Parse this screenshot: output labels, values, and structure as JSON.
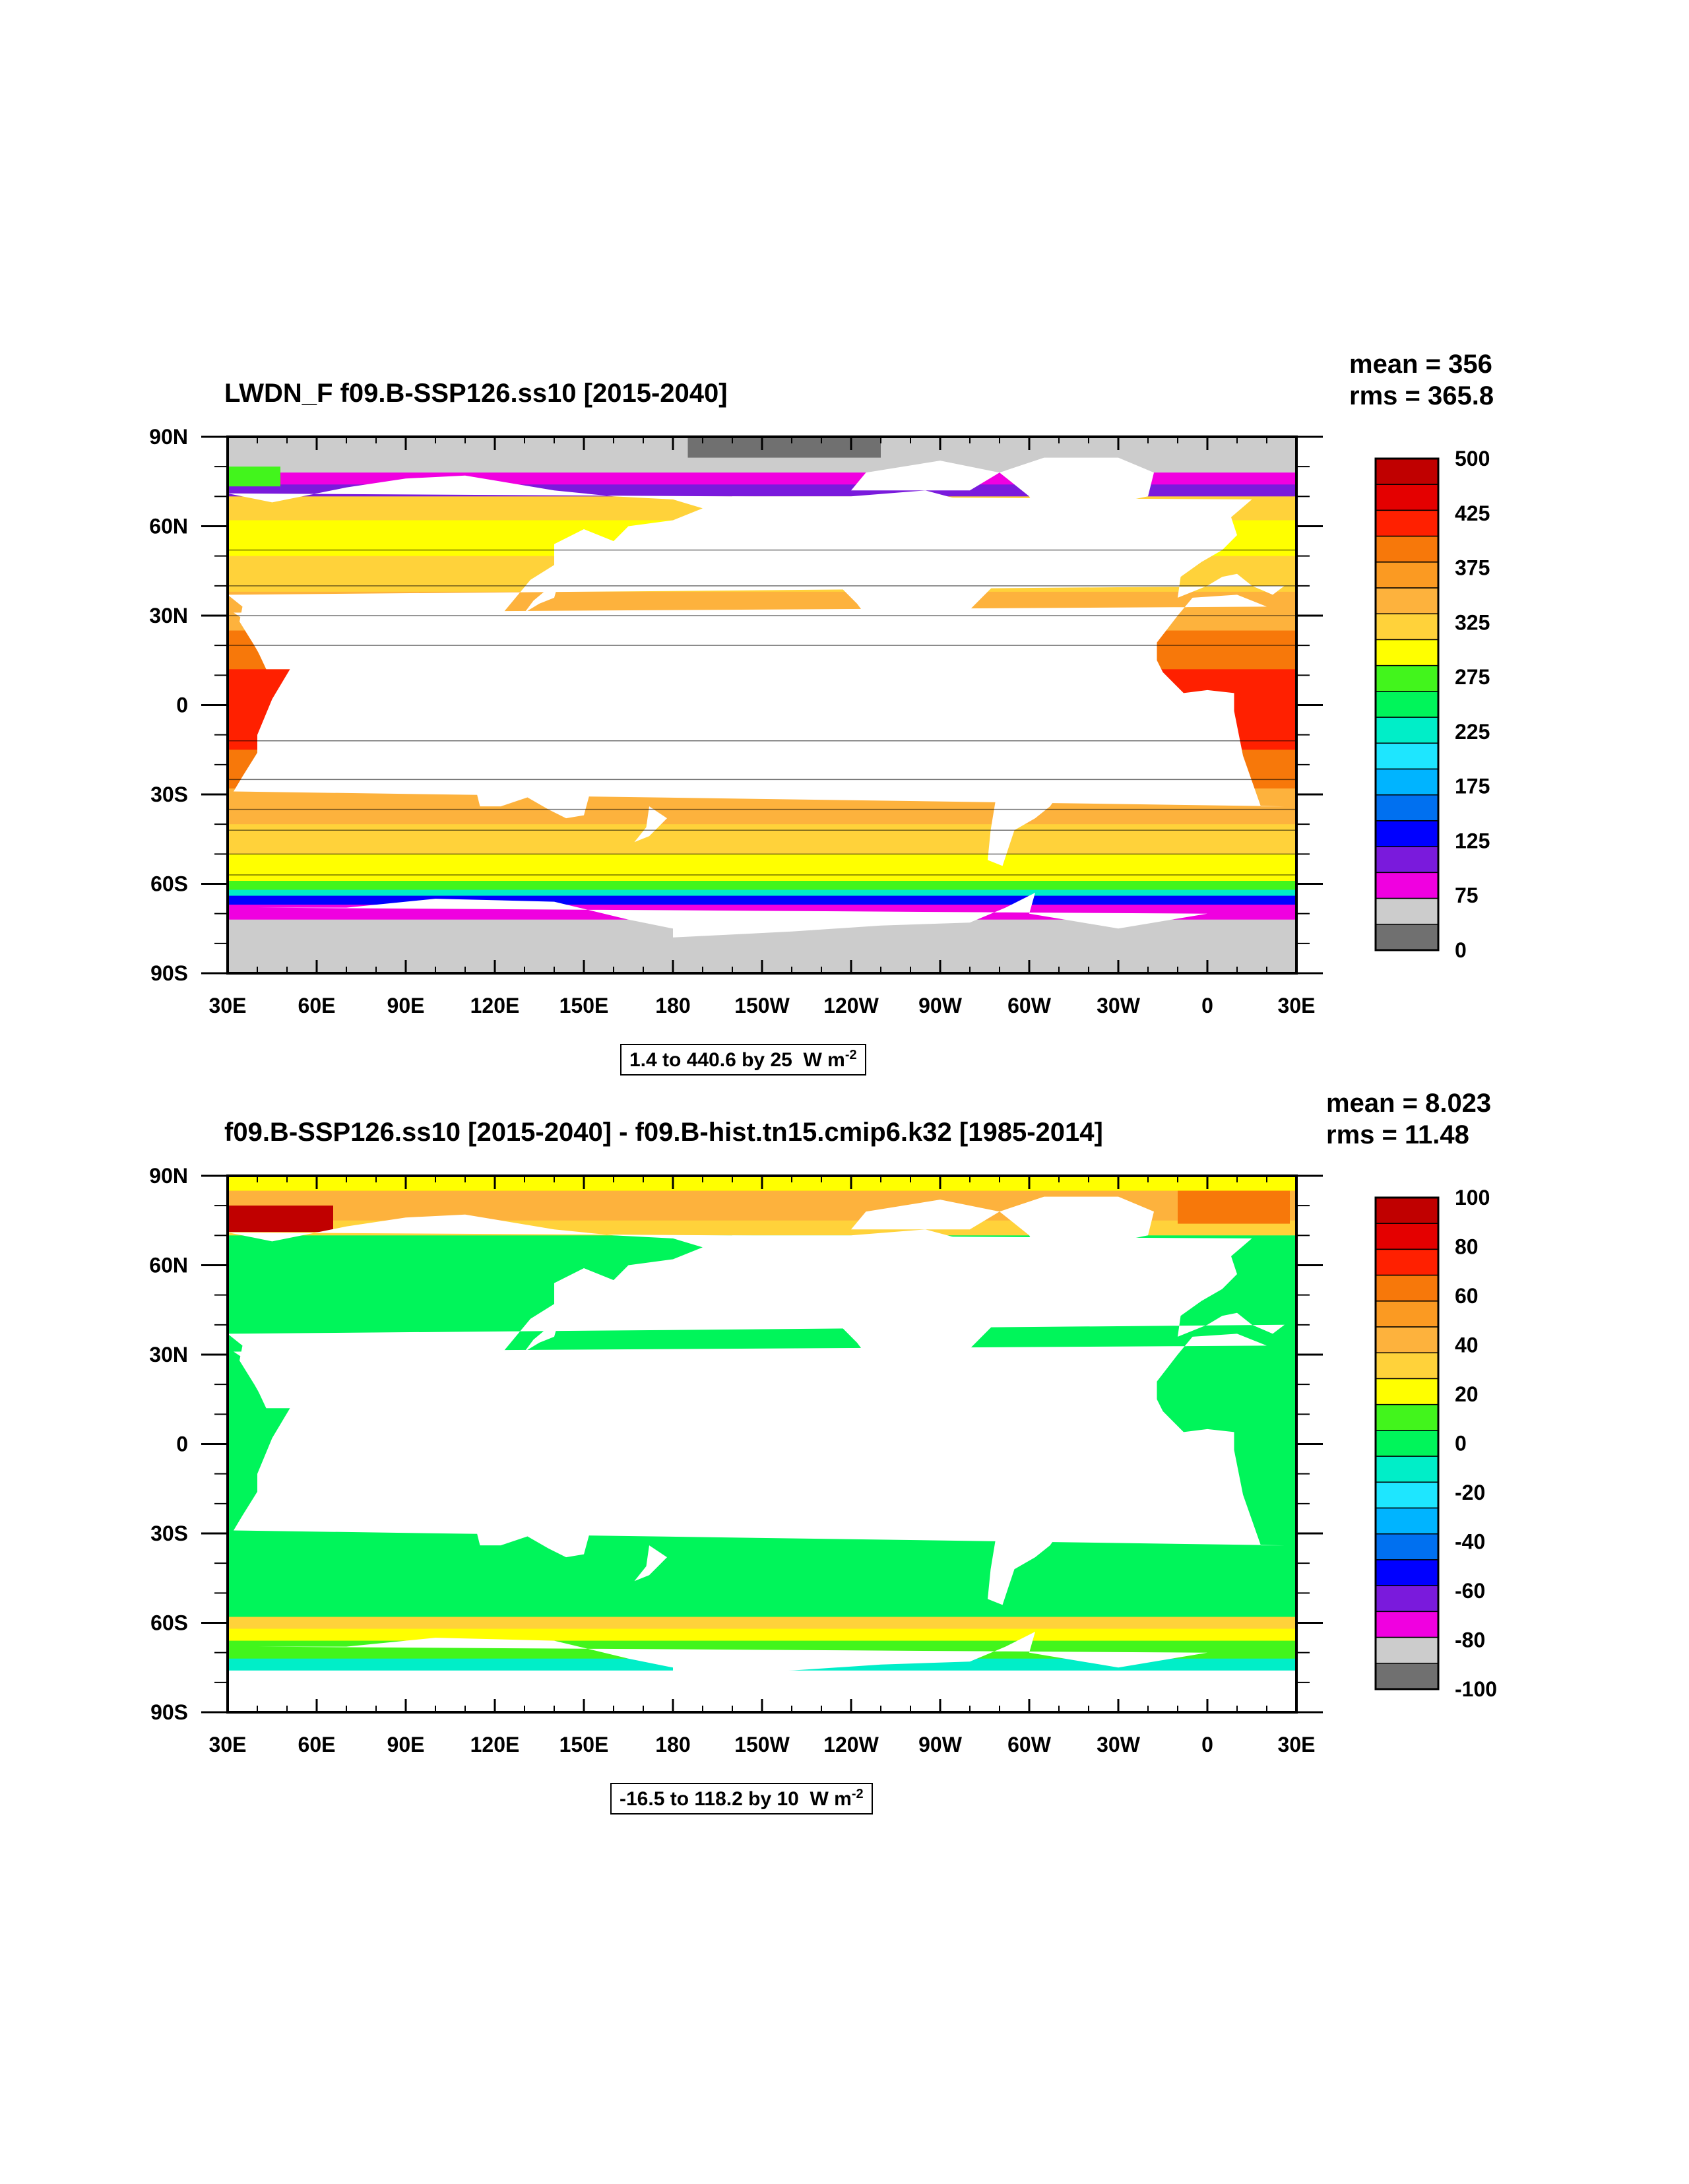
{
  "panels": [
    {
      "title": "LWDN_F f09.B-SSP126.ss10 [2015-2040]",
      "mean": "mean = 356",
      "rms": "rms = 365.8",
      "info": {
        "range": "1.4 to 440.6 by 25",
        "unit": "W m",
        "exp": "-2"
      }
    },
    {
      "title": "f09.B-SSP126.ss10 [2015-2040] - f09.B-hist.tn15.cmip6.k32 [1985-2014]",
      "mean": "mean = 8.023",
      "rms": "rms = 11.48",
      "info": {
        "range": "-16.5 to 118.2 by 10",
        "unit": "W m",
        "exp": "-2"
      }
    }
  ],
  "chart_data": [
    {
      "type": "heatmap",
      "title": "LWDN_F f09.B-SSP126.ss10 [2015-2040]",
      "xticks": [
        "30E",
        "60E",
        "90E",
        "120E",
        "150E",
        "180",
        "150W",
        "120W",
        "90W",
        "60W",
        "30W",
        "0",
        "30E"
      ],
      "yticks": [
        "90N",
        "60N",
        "30N",
        "0",
        "30S",
        "60S",
        "90S"
      ],
      "xlim": [
        30,
        390
      ],
      "ylim": [
        -90,
        90
      ],
      "colorbar": {
        "labels": [
          "500",
          "425",
          "375",
          "325",
          "275",
          "225",
          "175",
          "125",
          "75",
          "0"
        ],
        "colors": [
          "#C00000",
          "#E40000",
          "#FF2000",
          "#F7780A",
          "#FB9A22",
          "#FDB23D",
          "#FFD23A",
          "#FFFF00",
          "#42F51C",
          "#00F55A",
          "#00EEC8",
          "#1EE6FF",
          "#00B4FF",
          "#0070F0",
          "#0000FF",
          "#7A1ADC",
          "#F000E0",
          "#CCCCCC",
          "#707070"
        ]
      },
      "stats": {
        "mean": 356,
        "rms": 365.8
      }
    },
    {
      "type": "heatmap",
      "title": "f09.B-SSP126.ss10 [2015-2040] - f09.B-hist.tn15.cmip6.k32 [1985-2014]",
      "xticks": [
        "30E",
        "60E",
        "90E",
        "120E",
        "150E",
        "180",
        "150W",
        "120W",
        "90W",
        "60W",
        "30W",
        "0",
        "30E"
      ],
      "yticks": [
        "90N",
        "60N",
        "30N",
        "0",
        "30S",
        "60S",
        "90S"
      ],
      "xlim": [
        30,
        390
      ],
      "ylim": [
        -90,
        90
      ],
      "colorbar": {
        "labels": [
          "100",
          "80",
          "60",
          "40",
          "20",
          "0",
          "-20",
          "-40",
          "-60",
          "-80",
          "-100"
        ],
        "colors": [
          "#C00000",
          "#E40000",
          "#FF2000",
          "#F7780A",
          "#FB9A22",
          "#FDB23D",
          "#FFD23A",
          "#FFFF00",
          "#42F51C",
          "#00F55A",
          "#00EEC8",
          "#1EE6FF",
          "#00B4FF",
          "#0070F0",
          "#0000FF",
          "#7A1ADC",
          "#F000E0",
          "#CCCCCC",
          "#707070"
        ]
      },
      "stats": {
        "mean": 8.023,
        "rms": 11.48
      }
    }
  ]
}
